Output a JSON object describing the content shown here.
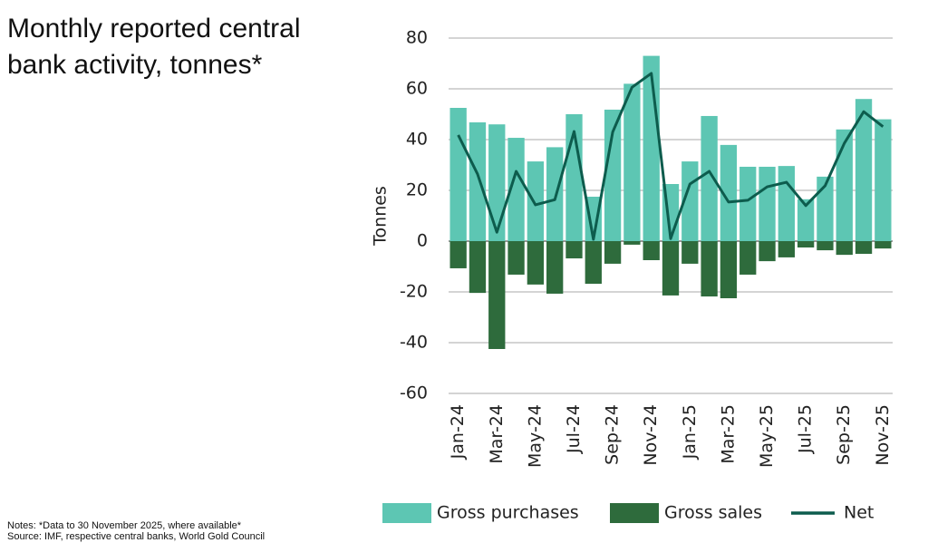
{
  "chart_data": {
    "type": "bar",
    "title": "Monthly reported central bank activity, tonnes*",
    "notes": "Notes: *Data to 30 November 2025, where available*",
    "source": "Source: IMF, respective central banks, World Gold Council",
    "y_label": "Tonnes",
    "categories": [
      "Jan-24",
      null,
      "Mar-24",
      null,
      "May-24",
      null,
      "Jul-24",
      null,
      "Sep-24",
      null,
      "Nov-24",
      null,
      "Jan-25",
      null,
      "Mar-25",
      null,
      "May-25",
      null,
      "Jul-25",
      null,
      "Sep-25",
      null,
      "Nov-25"
    ],
    "series": [
      {
        "name": "Gross purchases",
        "color": "#5dc6b3",
        "values": [
          52.5,
          46.8,
          46,
          40.7,
          31.4,
          37,
          50,
          17.5,
          51.8,
          62,
          73,
          22.5,
          31.4,
          49.3,
          37.9,
          29.3,
          29.3,
          29.6,
          16.5,
          25.4,
          44,
          56,
          48
        ]
      },
      {
        "name": "Gross sales",
        "color": "#2e6b3c",
        "values": [
          -10.7,
          -20.4,
          -42.5,
          -13.2,
          -17.1,
          -20.7,
          -6.8,
          -16.8,
          -8.9,
          -1.4,
          -7.5,
          -21.4,
          -8.9,
          -21.8,
          -22.5,
          -13.2,
          -7.9,
          -6.4,
          -2.5,
          -3.6,
          -5.4,
          -5,
          -2.9
        ]
      },
      {
        "name": "Net",
        "type": "line",
        "color": "#0d5c4d",
        "values": [
          41.8,
          26.4,
          3.5,
          27.5,
          14.3,
          16.3,
          43.2,
          0.7,
          43,
          60.6,
          66.1,
          1,
          22.5,
          27.5,
          15.4,
          16.1,
          21.4,
          23.2,
          14,
          21.8,
          38.6,
          51,
          45.1
        ]
      }
    ],
    "ylim": [
      -60,
      80
    ],
    "yticks": [
      -60,
      -40,
      -20,
      0,
      20,
      40,
      60,
      80
    ],
    "grid": true
  }
}
